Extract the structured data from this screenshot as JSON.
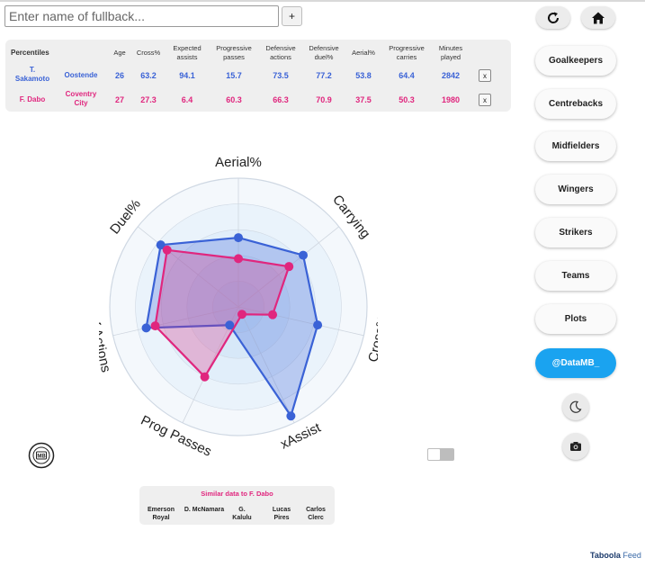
{
  "search": {
    "placeholder": "Enter name of fullback..."
  },
  "add_button": {
    "label": "+"
  },
  "icons": {
    "refresh": "refresh-icon",
    "home": "home-icon",
    "moon": "moon-icon",
    "camera": "camera-icon",
    "logo": "mb-logo"
  },
  "table": {
    "headers": [
      "Percentiles",
      "Age",
      "Cross%",
      "Expected assists",
      "Progressive passes",
      "Defensive actions",
      "Defensive duel%",
      "Aerial%",
      "Progressive carries",
      "Minutes played"
    ],
    "rows": [
      {
        "player": "T. Sakamoto",
        "team": "Oostende",
        "values": [
          "26",
          "63.2",
          "94.1",
          "15.7",
          "73.5",
          "77.2",
          "53.8",
          "64.4",
          "2842"
        ],
        "remove": "x"
      },
      {
        "player": "F. Dabo",
        "team": "Coventry City",
        "values": [
          "27",
          "27.3",
          "6.4",
          "60.3",
          "66.3",
          "70.9",
          "37.5",
          "50.3",
          "1980"
        ],
        "remove": "x"
      }
    ]
  },
  "nav": {
    "items": [
      "Goalkeepers",
      "Centrebacks",
      "Midfielders",
      "Wingers",
      "Strikers",
      "Teams",
      "Plots",
      "@DataMB_"
    ]
  },
  "colors": {
    "series1": "#3a62d6",
    "series2": "#e0267e",
    "accent": "#1aa3f0"
  },
  "chart_data": {
    "type": "radar",
    "axes": [
      "Aerial%",
      "Carrying",
      "Cross%",
      "xAssist",
      "Prog Passes",
      "Def Actions",
      "Duel%"
    ],
    "range": [
      0,
      100
    ],
    "series": [
      {
        "values": [
          53.8,
          64.4,
          63.2,
          94.1,
          15.7,
          73.5,
          77.2
        ]
      },
      {
        "values": [
          37.5,
          50.3,
          27.3,
          6.4,
          60.3,
          66.3,
          70.9
        ]
      }
    ]
  },
  "similar": {
    "title": "Similar data to F. Dabo",
    "players": [
      "Emerson Royal",
      "D. McNamara",
      "G. Kalulu",
      "Lucas Pires",
      "Carlos Clerc"
    ]
  },
  "footer": {
    "brand": "Taboola",
    "suffix": "Feed"
  }
}
